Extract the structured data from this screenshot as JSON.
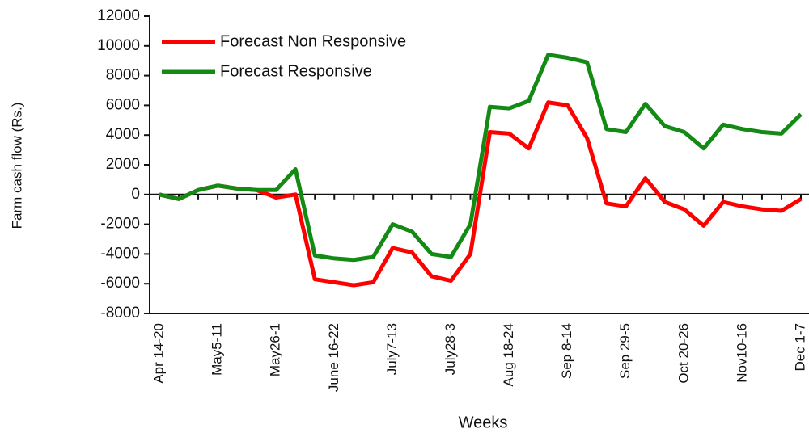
{
  "chart_data": {
    "type": "line",
    "y_label": "Farm cash flow (Rs.)",
    "x_label": "Weeks",
    "categories": [
      "Apr 14-20",
      null,
      null,
      "May5-11",
      null,
      null,
      "May26-1",
      null,
      null,
      "June 16-22",
      null,
      null,
      "July7-13",
      null,
      null,
      "July28-3",
      null,
      null,
      "Aug 18-24",
      null,
      null,
      "Sep 8-14",
      null,
      null,
      "Sep 29-5",
      null,
      null,
      "Oct 20-26",
      null,
      null,
      "Nov10-16",
      null,
      null,
      "Dec 1-7"
    ],
    "series": [
      {
        "name": "Forecast Non Responsive",
        "color": "#ff0000",
        "values": [
          0,
          -300,
          300,
          600,
          400,
          300,
          -200,
          0,
          -5700,
          -5900,
          -6100,
          -5900,
          -3600,
          -3900,
          -5500,
          -5800,
          -4000,
          4200,
          4100,
          3100,
          6200,
          6000,
          3800,
          -600,
          -800,
          1100,
          -500,
          -1000,
          -2100,
          -500,
          -800,
          -1000,
          -1100,
          -300
        ]
      },
      {
        "name": "Forecast Responsive",
        "color": "#138a13",
        "values": [
          0,
          -300,
          300,
          600,
          400,
          300,
          300,
          1700,
          -4100,
          -4300,
          -4400,
          -4200,
          -2000,
          -2500,
          -4000,
          -4200,
          -2000,
          5900,
          5800,
          6300,
          9400,
          9200,
          8900,
          4400,
          4200,
          6100,
          4600,
          4200,
          3100,
          4700,
          4400,
          4200,
          4100,
          5400
        ]
      }
    ],
    "ylim": [
      -8000,
      12000
    ],
    "yticks": [
      -8000,
      -6000,
      -4000,
      -2000,
      0,
      2000,
      4000,
      6000,
      8000,
      10000,
      12000
    ],
    "legend": "upper left"
  }
}
